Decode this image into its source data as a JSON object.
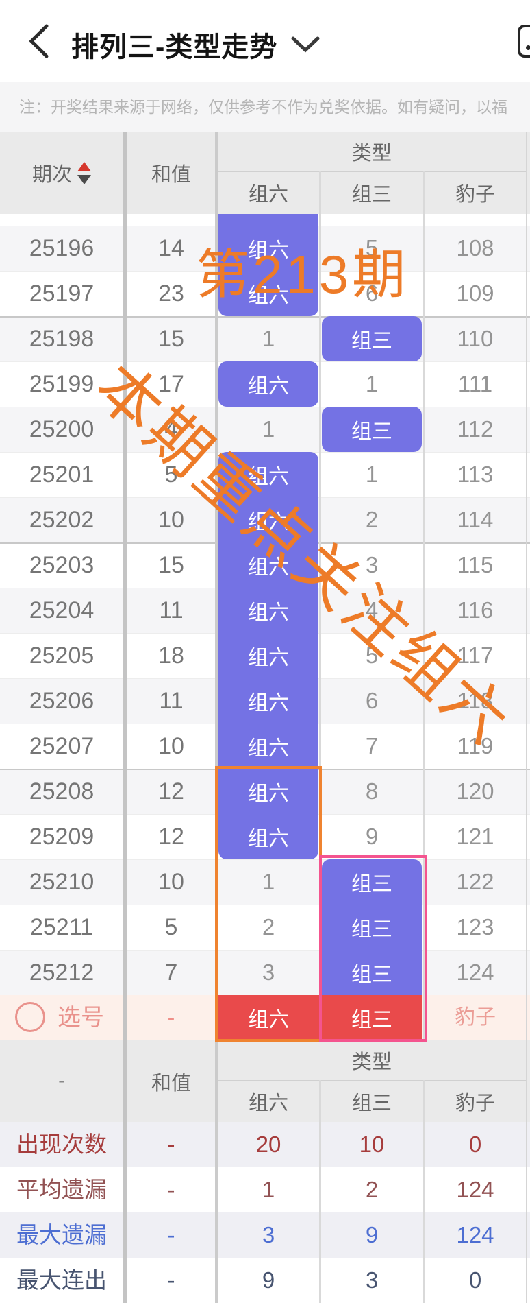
{
  "navbar": {
    "title": "排列三-类型走势",
    "back_icon": "chevron-left",
    "dropdown_icon": "chevron-down",
    "right_icon": "rounded-square"
  },
  "notice": {
    "text": "注：开奖结果来源于网络，仅供参考不作为兑奖依据。如有疑问，以福"
  },
  "table": {
    "header": {
      "period": "期次",
      "sum": "和值",
      "type_group": "类型",
      "sub": [
        "组六",
        "组三",
        "豹子"
      ]
    },
    "rows": [
      {
        "period": "25196",
        "sum": "14",
        "z6": "组六",
        "z3": "5",
        "bz": "108",
        "hit": "z6"
      },
      {
        "period": "25197",
        "sum": "23",
        "z6": "组六",
        "z3": "6",
        "bz": "109",
        "hit": "z6"
      },
      {
        "period": "25198",
        "sum": "15",
        "z6": "1",
        "z3": "组三",
        "bz": "110",
        "hit": "z3"
      },
      {
        "period": "25199",
        "sum": "17",
        "z6": "组六",
        "z3": "1",
        "bz": "111",
        "hit": "z6"
      },
      {
        "period": "25200",
        "sum": "4",
        "z6": "1",
        "z3": "组三",
        "bz": "112",
        "hit": "z3"
      },
      {
        "period": "25201",
        "sum": "5",
        "z6": "组六",
        "z3": "1",
        "bz": "113",
        "hit": "z6"
      },
      {
        "period": "25202",
        "sum": "10",
        "z6": "组六",
        "z3": "2",
        "bz": "114",
        "hit": "z6"
      },
      {
        "period": "25203",
        "sum": "15",
        "z6": "组六",
        "z3": "3",
        "bz": "115",
        "hit": "z6"
      },
      {
        "period": "25204",
        "sum": "11",
        "z6": "组六",
        "z3": "4",
        "bz": "116",
        "hit": "z6"
      },
      {
        "period": "25205",
        "sum": "18",
        "z6": "组六",
        "z3": "5",
        "bz": "117",
        "hit": "z6"
      },
      {
        "period": "25206",
        "sum": "11",
        "z6": "组六",
        "z3": "6",
        "bz": "118",
        "hit": "z6"
      },
      {
        "period": "25207",
        "sum": "10",
        "z6": "组六",
        "z3": "7",
        "bz": "119",
        "hit": "z6"
      },
      {
        "period": "25208",
        "sum": "12",
        "z6": "组六",
        "z3": "8",
        "bz": "120",
        "hit": "z6"
      },
      {
        "period": "25209",
        "sum": "12",
        "z6": "组六",
        "z3": "9",
        "bz": "121",
        "hit": "z6"
      },
      {
        "period": "25210",
        "sum": "10",
        "z6": "1",
        "z3": "组三",
        "bz": "122",
        "hit": "z3"
      },
      {
        "period": "25211",
        "sum": "5",
        "z6": "2",
        "z3": "组三",
        "bz": "123",
        "hit": "z3"
      },
      {
        "period": "25212",
        "sum": "7",
        "z6": "3",
        "z3": "组三",
        "bz": "124",
        "hit": "z3"
      }
    ],
    "group_separator_rows": [
      2,
      7,
      12
    ],
    "pick_row": {
      "label": "选号",
      "sum": "-",
      "z6": "组六",
      "z3": "组三",
      "bz": "豹子"
    },
    "footer_header": {
      "period": "-",
      "sum": "和值",
      "type_group": "类型",
      "sub": [
        "组六",
        "组三",
        "豹子"
      ]
    },
    "stats": [
      {
        "label": "出现次数",
        "sum": "-",
        "z6": "20",
        "z3": "10",
        "bz": "0",
        "color": "#a63c3c"
      },
      {
        "label": "平均遗漏",
        "sum": "-",
        "z6": "1",
        "z3": "2",
        "bz": "124",
        "color": "#925253"
      },
      {
        "label": "最大遗漏",
        "sum": "-",
        "z6": "3",
        "z3": "9",
        "bz": "124",
        "color": "#4d6ed2"
      },
      {
        "label": "最大连出",
        "sum": "-",
        "z6": "9",
        "z3": "3",
        "bz": "0",
        "color": "#475470"
      }
    ]
  },
  "watermarks": {
    "period_label": "第213期",
    "diagonal": "本期重点关注组六",
    "color": "#ed7b28"
  },
  "colors": {
    "hit_purple": "#7472e4",
    "pick_red": "#e94a4b",
    "orange_box": "#ef8330",
    "pink_box": "#f4548f",
    "pick_row_bg": "#fdf0ea",
    "header_bg": "#eaeaea"
  }
}
